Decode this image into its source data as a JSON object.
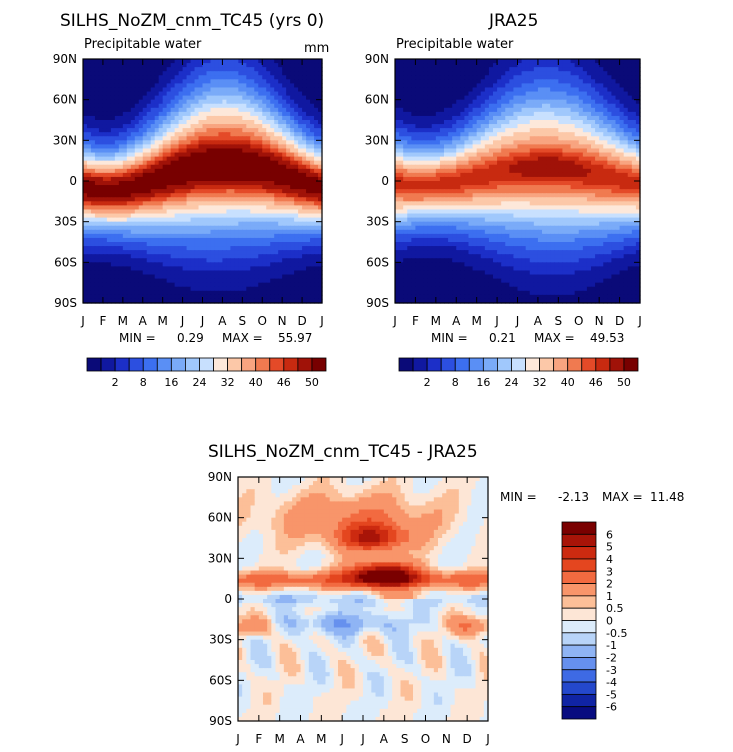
{
  "chart_data": [
    {
      "type": "heatmap",
      "title": "SILHS_NoZM_cnm_TC45 (yrs 0)",
      "subtitle": "Precipitable water",
      "units": "mm",
      "months": [
        "J",
        "F",
        "M",
        "A",
        "M",
        "J",
        "J",
        "A",
        "S",
        "O",
        "N",
        "D",
        "J"
      ],
      "lat_labels": [
        "90N",
        "60N",
        "30N",
        "0",
        "30S",
        "60S",
        "90S"
      ],
      "min_label": "MIN =",
      "min_value": "0.29",
      "max_label": "MAX =",
      "max_value": "55.97",
      "colorbar_labels": [
        "2",
        "8",
        "16",
        "24",
        "32",
        "40",
        "46",
        "50"
      ],
      "itcz_max": 55.97,
      "peak_month": 7.0,
      "peak_lat": 12
    },
    {
      "type": "heatmap",
      "title": "JRA25",
      "subtitle": "Precipitable water",
      "months": [
        "J",
        "F",
        "M",
        "A",
        "M",
        "J",
        "J",
        "A",
        "S",
        "O",
        "N",
        "D",
        "J"
      ],
      "lat_labels": [
        "90N",
        "60N",
        "30N",
        "0",
        "30S",
        "60S",
        "90S"
      ],
      "min_label": "MIN =",
      "min_value": "0.21",
      "max_label": "MAX =",
      "max_value": "49.53",
      "colorbar_labels": [
        "2",
        "8",
        "16",
        "24",
        "32",
        "40",
        "46",
        "50"
      ],
      "itcz_max": 49.53,
      "peak_month": 7.5,
      "peak_lat": 8
    },
    {
      "type": "heatmap",
      "title": "SILHS_NoZM_cnm_TC45 - JRA25",
      "months": [
        "J",
        "F",
        "M",
        "A",
        "M",
        "J",
        "J",
        "A",
        "S",
        "O",
        "N",
        "D",
        "J"
      ],
      "lat_labels": [
        "90N",
        "60N",
        "30N",
        "0",
        "30S",
        "60S",
        "90S"
      ],
      "min_label": "MIN =",
      "min_value": "-2.13",
      "max_label": "MAX =",
      "max_value": "11.48",
      "colorbar_labels": [
        "6",
        "5",
        "4",
        "3",
        "2",
        "1",
        "0.5",
        "0",
        "-0.5",
        "-1",
        "-2",
        "-3",
        "-4",
        "-5",
        "-6"
      ]
    }
  ],
  "colors": {
    "field_scale": [
      "#0a0a78",
      "#1018a0",
      "#1c2fc8",
      "#2c4fe0",
      "#3c6ff0",
      "#5a8ff5",
      "#7aabf8",
      "#a0c8fc",
      "#c8e0fe",
      "#fde8da",
      "#fcc8a8",
      "#f8a480",
      "#f07a50",
      "#e44a28",
      "#c82a10",
      "#a01208",
      "#780000"
    ],
    "diff_scale": [
      "#7a0000",
      "#a81408",
      "#cc2a10",
      "#e4461f",
      "#f26a40",
      "#f8956a",
      "#fcbf98",
      "#fde6d6",
      "#dcecfb",
      "#b8d4f8",
      "#8fb4f4",
      "#6690ee",
      "#3e6ae4",
      "#2448cc",
      "#1024a4",
      "#080c80"
    ]
  }
}
